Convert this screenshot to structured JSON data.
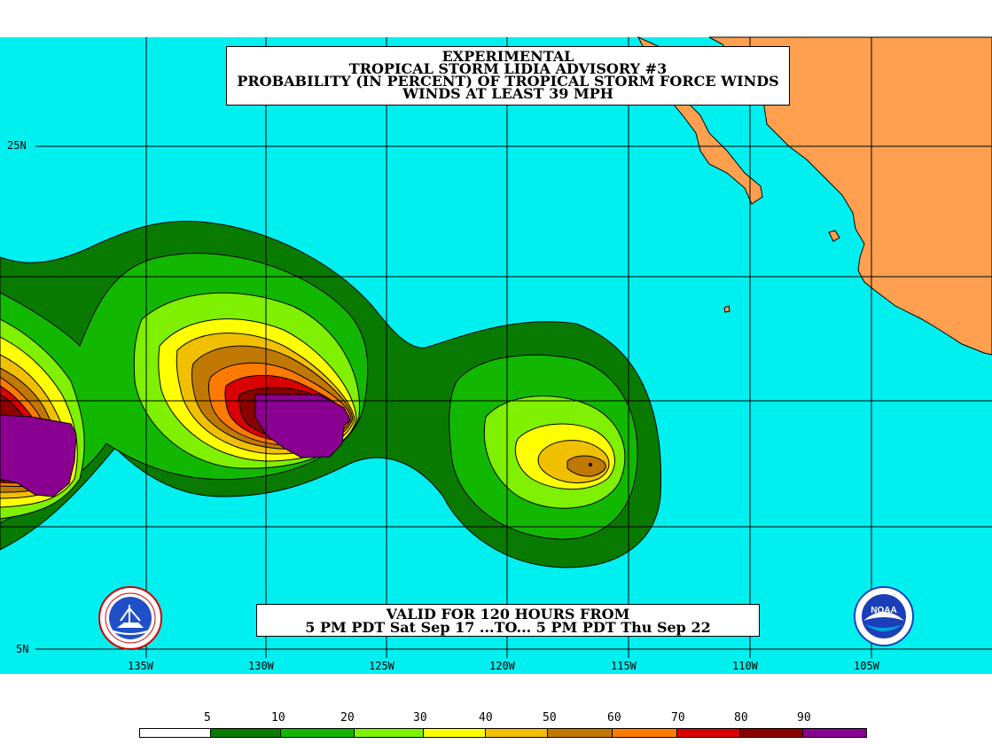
{
  "title": {
    "line1": "EXPERIMENTAL",
    "line2": "TROPICAL STORM LIDIA ADVISORY #3",
    "line3": "PROBABILITY (IN PERCENT) OF TROPICAL STORM FORCE WINDS",
    "line4": "WINDS AT LEAST 39 MPH"
  },
  "valid": {
    "line1": "VALID FOR 120 HOURS FROM",
    "line2": "5 PM PDT Sat Sep 17 ...TO... 5 PM PDT Thu Sep 22"
  },
  "axes": {
    "longitude_labels": [
      "135W",
      "130W",
      "125W",
      "120W",
      "115W",
      "110W",
      "105W"
    ],
    "latitude_labels": [
      "25N",
      "5N"
    ]
  },
  "legend": {
    "labels": [
      "5",
      "10",
      "20",
      "30",
      "40",
      "50",
      "60",
      "70",
      "80",
      "90"
    ],
    "colors": [
      "#ffffff",
      "#087a00",
      "#12b800",
      "#7ef000",
      "#ffff00",
      "#f0c000",
      "#c07800",
      "#ff7a00",
      "#d80000",
      "#8a0000",
      "#8a0090"
    ]
  },
  "colors": {
    "ocean": "#00f0f0",
    "land": "#ffa050",
    "grid": "#000000"
  },
  "logos": {
    "left": "nws-logo",
    "right": "noaa-logo",
    "noaa_text": "NOAA"
  }
}
